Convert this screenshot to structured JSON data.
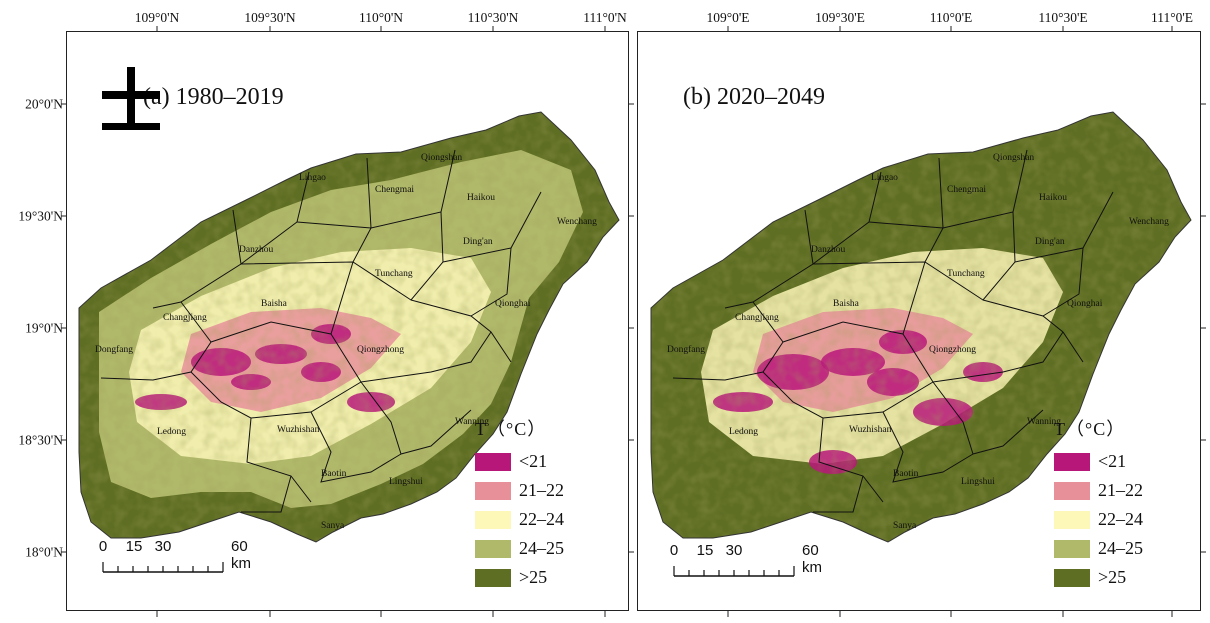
{
  "top_lon_labels_a": [
    "109°0'N",
    "109°30'N",
    "110°0'N",
    "110°30'N",
    "111°0'N"
  ],
  "top_lon_labels_b": [
    "109°0'E",
    "109°30'E",
    "110°0'E",
    "110°30'E",
    "111°0'E"
  ],
  "lat_labels": [
    "20°0'N",
    "19°30'N",
    "19°0'N",
    "18°30'N",
    "18°0'N"
  ],
  "panels": [
    {
      "title": "(a) 1980–2019"
    },
    {
      "title": "(b) 2020–2049"
    }
  ],
  "legend": {
    "title": "T（°C）",
    "items": [
      {
        "label": "<21",
        "color": "#b8177a"
      },
      {
        "label": "21–22",
        "color": "#e8909a"
      },
      {
        "label": "22–24",
        "color": "#fdf7b8"
      },
      {
        "label": "24–25",
        "color": "#b0b86a"
      },
      {
        "label": ">25",
        "color": "#5e6e23"
      }
    ]
  },
  "scale_bar": {
    "labels": [
      "0",
      "15",
      "30",
      "60 km"
    ]
  },
  "cities": [
    "Lingao",
    "Qiongshan",
    "Chengmai",
    "Haikou",
    "Wenchang",
    "Danzhou",
    "Ding'an",
    "Tunchang",
    "Qionghai",
    "Changjiang",
    "Baisha",
    "Dongfang",
    "Qiongzhong",
    "Ledong",
    "Wuzhishan",
    "Wanning",
    "Baotin",
    "Lingshui",
    "Sanya"
  ],
  "north_arrow": "north-arrow"
}
